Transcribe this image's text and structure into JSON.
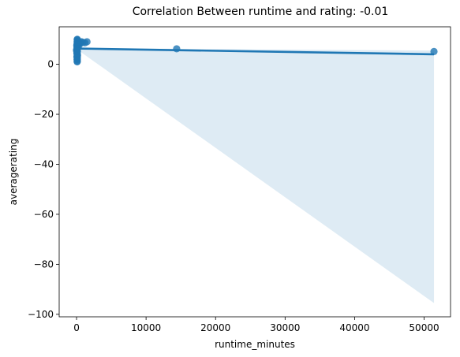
{
  "chart_data": {
    "type": "scatter",
    "title": "Correlation Between runtime and rating: -0.01",
    "xlabel": "runtime_minutes",
    "ylabel": "averagerating",
    "xlim": [
      -2500,
      53800
    ],
    "ylim": [
      -101,
      15
    ],
    "xticks": [
      0,
      10000,
      20000,
      30000,
      40000,
      50000
    ],
    "yticks": [
      -100,
      -80,
      -60,
      -40,
      -20,
      0
    ],
    "grid": false,
    "legend": "none",
    "colors": {
      "points": "#1f77b4",
      "line": "#1f77b4",
      "band": "#1f77b4"
    },
    "regression": {
      "x": [
        0,
        51420
      ],
      "y": [
        6.3,
        4.0
      ]
    },
    "confidence_band": {
      "x": [
        0,
        51420
      ],
      "upper": [
        6.5,
        5.5
      ],
      "lower": [
        6.1,
        -95.5
      ]
    },
    "points": {
      "x": [
        0,
        20,
        40,
        60,
        80,
        100,
        120,
        150,
        180,
        200,
        250,
        300,
        350,
        400,
        500,
        700,
        900,
        1200,
        1500,
        60,
        80,
        100,
        120,
        90,
        110,
        70,
        130,
        50,
        95,
        105,
        85,
        75,
        140,
        160,
        100,
        90,
        80,
        70,
        110,
        120,
        14400,
        51420
      ],
      "y": [
        5.5,
        6.0,
        7.5,
        8.0,
        9.0,
        10.0,
        9.5,
        9.0,
        8.5,
        8.0,
        8.8,
        9.0,
        8.2,
        7.8,
        8.5,
        9.0,
        8.8,
        8.6,
        9.0,
        3.0,
        2.0,
        1.2,
        4.0,
        5.0,
        6.5,
        7.0,
        3.5,
        4.5,
        1.8,
        2.5,
        6.8,
        5.8,
        7.2,
        8.1,
        9.8,
        1.0,
        3.2,
        4.2,
        5.2,
        6.2,
        6.2,
        5.1
      ]
    }
  }
}
